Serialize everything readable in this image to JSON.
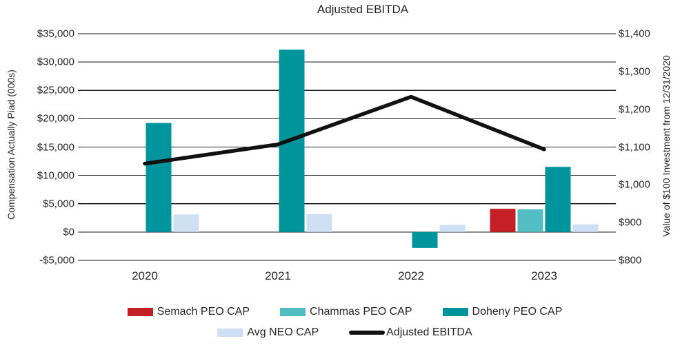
{
  "title": "Adjusted EBITDA",
  "axes": {
    "left": {
      "title": "Compensation Actually Piad (000s)",
      "ticks": [
        "$35,000",
        "$30,000",
        "$25,000",
        "$20,000",
        "$15,000",
        "$10,000",
        "$5,000",
        "$0",
        "-$5,000"
      ]
    },
    "right": {
      "title": "Value of $100 Investment from 12/31/2020",
      "ticks": [
        "$1,400",
        "$1,300",
        "$1,200",
        "$1,100",
        "$1,000",
        "$900",
        "$800"
      ]
    },
    "x": {
      "categories": [
        "2020",
        "2021",
        "2022",
        "2023"
      ]
    }
  },
  "chart_data": {
    "type": "bar",
    "subtype": "grouped-bars-with-line-dual-axis",
    "title": "Adjusted EBITDA",
    "categories": [
      "2020",
      "2021",
      "2022",
      "2023"
    ],
    "series": [
      {
        "name": "Semach PEO CAP",
        "kind": "bar",
        "axis": "left",
        "color": "#c52025",
        "values": [
          null,
          null,
          null,
          4100
        ]
      },
      {
        "name": "Chammas PEO CAP",
        "kind": "bar",
        "axis": "left",
        "color": "#52bdc2",
        "values": [
          null,
          null,
          null,
          4000
        ]
      },
      {
        "name": "Doheny PEO CAP",
        "kind": "bar",
        "axis": "left",
        "color": "#00949c",
        "values": [
          19250,
          32200,
          -2800,
          11500
        ]
      },
      {
        "name": "Avg NEO CAP",
        "kind": "bar",
        "axis": "left",
        "color": "#cddff2",
        "values": [
          3100,
          3150,
          1250,
          1350
        ]
      },
      {
        "name": "Adjusted EBITDA",
        "kind": "line",
        "axis": "right",
        "color": "#111111",
        "values": [
          1056,
          1107,
          1233,
          1094
        ]
      }
    ],
    "left_ylabel": "Compensation Actually Piad (000s)",
    "right_ylabel": "Value of $100 Investment from 12/31/2020",
    "left_ylim": [
      -5000,
      35000
    ],
    "right_ylim": [
      800,
      1400
    ],
    "left_tick_step": 5000,
    "right_tick_step": 100,
    "grid": true,
    "legend_position": "bottom"
  },
  "legend": {
    "rows": [
      [
        "Semach PEO CAP",
        "Chammas PEO CAP",
        "Doheny PEO CAP"
      ],
      [
        "Avg NEO CAP",
        "Adjusted EBITDA"
      ]
    ]
  },
  "colors": {
    "grid": "#1a1a1a",
    "text": "#262626",
    "background": "#ffffff"
  }
}
